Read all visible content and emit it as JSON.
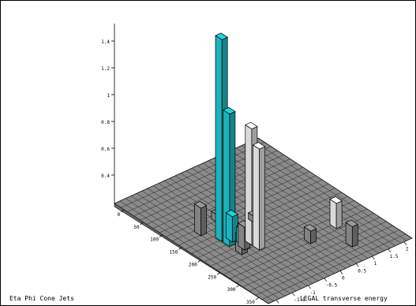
{
  "chart_data": {
    "type": "lego",
    "title": "",
    "caption": "Eta Phi Cone Jets",
    "zlabel": "",
    "xlabel": "",
    "ylabel": "LEGAL transverse energy",
    "z_axis": {
      "ticks": [
        "0.4",
        "0.6",
        "0.8",
        "1",
        "1.2",
        "1.4"
      ]
    },
    "left_axis": {
      "ticks": [
        "0",
        "50",
        "100",
        "150",
        "200",
        "250",
        "300",
        "350"
      ]
    },
    "right_axis": {
      "ticks": [
        "-2",
        "-1.5",
        "-1",
        "-0.5",
        "0",
        "0.5",
        "1",
        "1.5",
        "2"
      ]
    },
    "series": [
      {
        "label": "cyan",
        "color": "#22d3df"
      },
      {
        "label": "white",
        "color": "#ffffff"
      },
      {
        "label": "gray",
        "color": "#9a9a9a"
      }
    ],
    "towers": [
      {
        "u": 0.47,
        "v": 0.2,
        "h": 1.6,
        "kind": "cyan"
      },
      {
        "u": 0.52,
        "v": 0.2,
        "h": 1.05,
        "kind": "cyan"
      },
      {
        "u": 0.5,
        "v": 0.24,
        "h": 0.2,
        "kind": "cyan"
      },
      {
        "u": 0.55,
        "v": 0.26,
        "h": 0.12,
        "kind": "cyan"
      },
      {
        "u": 0.57,
        "v": 0.3,
        "h": 0.92,
        "kind": "white"
      },
      {
        "u": 0.62,
        "v": 0.3,
        "h": 0.8,
        "kind": "white"
      },
      {
        "u": 0.38,
        "v": 0.15,
        "h": 0.22,
        "kind": "gray"
      },
      {
        "u": 0.58,
        "v": 0.24,
        "h": 0.18,
        "kind": "gray"
      },
      {
        "u": 0.6,
        "v": 0.2,
        "h": 0.14,
        "kind": "gray"
      },
      {
        "u": 0.72,
        "v": 0.55,
        "h": 0.1,
        "kind": "gray"
      },
      {
        "u": 0.7,
        "v": 0.75,
        "h": 0.2,
        "kind": "white"
      },
      {
        "u": 0.85,
        "v": 0.7,
        "h": 0.16,
        "kind": "gray"
      },
      {
        "u": 0.35,
        "v": 0.3,
        "h": 0.06,
        "kind": "gray"
      },
      {
        "u": 0.45,
        "v": 0.45,
        "h": 0.05,
        "kind": "gray"
      }
    ]
  }
}
